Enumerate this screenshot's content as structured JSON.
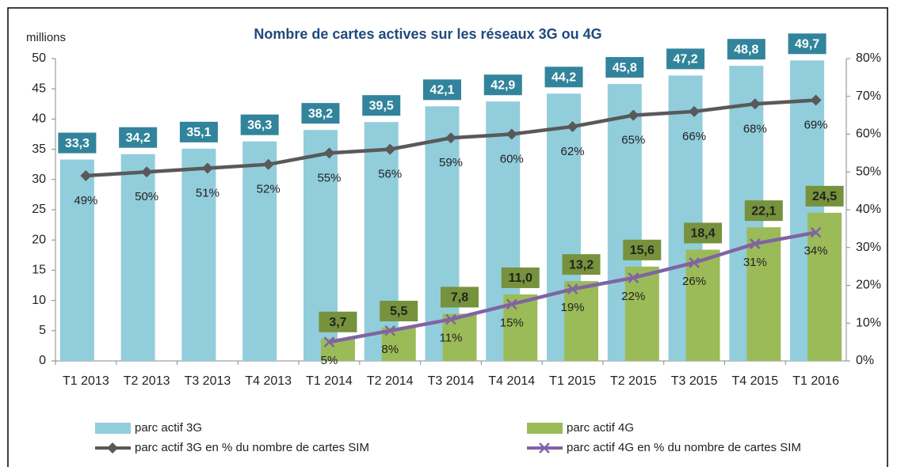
{
  "chart_data": {
    "type": "bar",
    "title": "Nombre de cartes actives sur les réseaux 3G ou 4G",
    "y_label": "millions",
    "categories": [
      "T1 2013",
      "T2 2013",
      "T3 2013",
      "T4 2013",
      "T1 2014",
      "T2 2014",
      "T3 2014",
      "T4 2014",
      "T1 2015",
      "T2 2015",
      "T3 2015",
      "T4 2015",
      "T1 2016"
    ],
    "series": [
      {
        "name": "parc actif 3G",
        "type": "bar",
        "color": "#92cddc",
        "label_color": "#31849b",
        "values": [
          33.3,
          34.2,
          35.1,
          36.3,
          38.2,
          39.5,
          42.1,
          42.9,
          44.2,
          45.8,
          47.2,
          48.8,
          49.7
        ],
        "value_labels": [
          "33,3",
          "34,2",
          "35,1",
          "36,3",
          "38,2",
          "39,5",
          "42,1",
          "42,9",
          "44,2",
          "45,8",
          "47,2",
          "48,8",
          "49,7"
        ]
      },
      {
        "name": "parc actif 4G",
        "type": "bar",
        "color": "#9bbb59",
        "label_color": "#76923c",
        "values": [
          null,
          null,
          null,
          null,
          3.7,
          5.5,
          7.8,
          11.0,
          13.2,
          15.6,
          18.4,
          22.1,
          24.5
        ],
        "value_labels": [
          null,
          null,
          null,
          null,
          "3,7",
          "5,5",
          "7,8",
          "11,0",
          "13,2",
          "15,6",
          "18,4",
          "22,1",
          "24,5"
        ]
      },
      {
        "name": "parc actif 3G en % du nombre de cartes SIM",
        "type": "line",
        "axis": "y2",
        "marker": "diamond",
        "color": "#595959",
        "values": [
          49,
          50,
          51,
          52,
          55,
          56,
          59,
          60,
          62,
          65,
          66,
          68,
          69
        ],
        "value_labels": [
          "49%",
          "50%",
          "51%",
          "52%",
          "55%",
          "56%",
          "59%",
          "60%",
          "62%",
          "65%",
          "66%",
          "68%",
          "69%"
        ]
      },
      {
        "name": "parc actif 4G en % du nombre de cartes SIM",
        "type": "line",
        "axis": "y2",
        "marker": "x",
        "color": "#8064a2",
        "values": [
          null,
          null,
          null,
          null,
          5,
          8,
          11,
          15,
          19,
          22,
          26,
          31,
          34
        ],
        "value_labels": [
          null,
          null,
          null,
          null,
          "5%",
          "8%",
          "11%",
          "15%",
          "19%",
          "22%",
          "26%",
          "31%",
          "34%"
        ]
      }
    ],
    "ylim": [
      0,
      50
    ],
    "yticks": [
      0,
      5,
      10,
      15,
      20,
      25,
      30,
      35,
      40,
      45,
      50
    ],
    "y2lim": [
      0,
      80
    ],
    "y2ticks": [
      {
        "value": 0,
        "label": "0%"
      },
      {
        "value": 10,
        "label": "10%"
      },
      {
        "value": 20,
        "label": "20%"
      },
      {
        "value": 30,
        "label": "30%"
      },
      {
        "value": 40,
        "label": "40%"
      },
      {
        "value": 50,
        "label": "50%"
      },
      {
        "value": 60,
        "label": "60%"
      },
      {
        "value": 70,
        "label": "70%"
      },
      {
        "value": 80,
        "label": "80%"
      }
    ],
    "grid": false,
    "legend": "bottom"
  }
}
